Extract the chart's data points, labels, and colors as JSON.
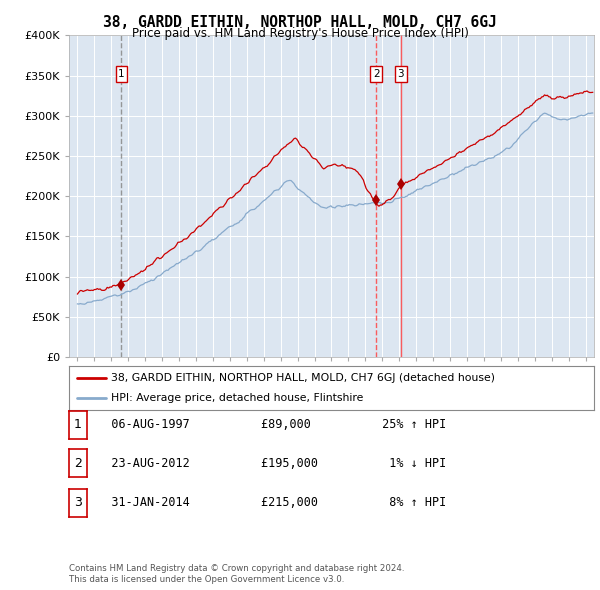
{
  "title": "38, GARDD EITHIN, NORTHOP HALL, MOLD, CH7 6GJ",
  "subtitle": "Price paid vs. HM Land Registry's House Price Index (HPI)",
  "legend_line1": "38, GARDD EITHIN, NORTHOP HALL, MOLD, CH7 6GJ (detached house)",
  "legend_line2": "HPI: Average price, detached house, Flintshire",
  "footer1": "Contains HM Land Registry data © Crown copyright and database right 2024.",
  "footer2": "This data is licensed under the Open Government Licence v3.0.",
  "sale_points": [
    {
      "label": "1",
      "date": "06-AUG-1997",
      "price": 89000,
      "hpi_pct": "25% ↑ HPI",
      "year": 1997.6,
      "vline_color": "#888888",
      "vline_style": "--"
    },
    {
      "label": "2",
      "date": "23-AUG-2012",
      "price": 195000,
      "hpi_pct": "1% ↓ HPI",
      "year": 2012.65,
      "vline_color": "#ff4444",
      "vline_style": "--"
    },
    {
      "label": "3",
      "date": "31-JAN-2014",
      "price": 215000,
      "hpi_pct": "8% ↑ HPI",
      "year": 2014.08,
      "vline_color": "#ff4444",
      "vline_style": "-"
    }
  ],
  "ylim": [
    0,
    400000
  ],
  "xlim_start": 1994.5,
  "xlim_end": 2025.5,
  "bg_color": "#dce6f1",
  "red_color": "#cc0000",
  "blue_color": "#88aacc",
  "marker_color": "#aa0000"
}
